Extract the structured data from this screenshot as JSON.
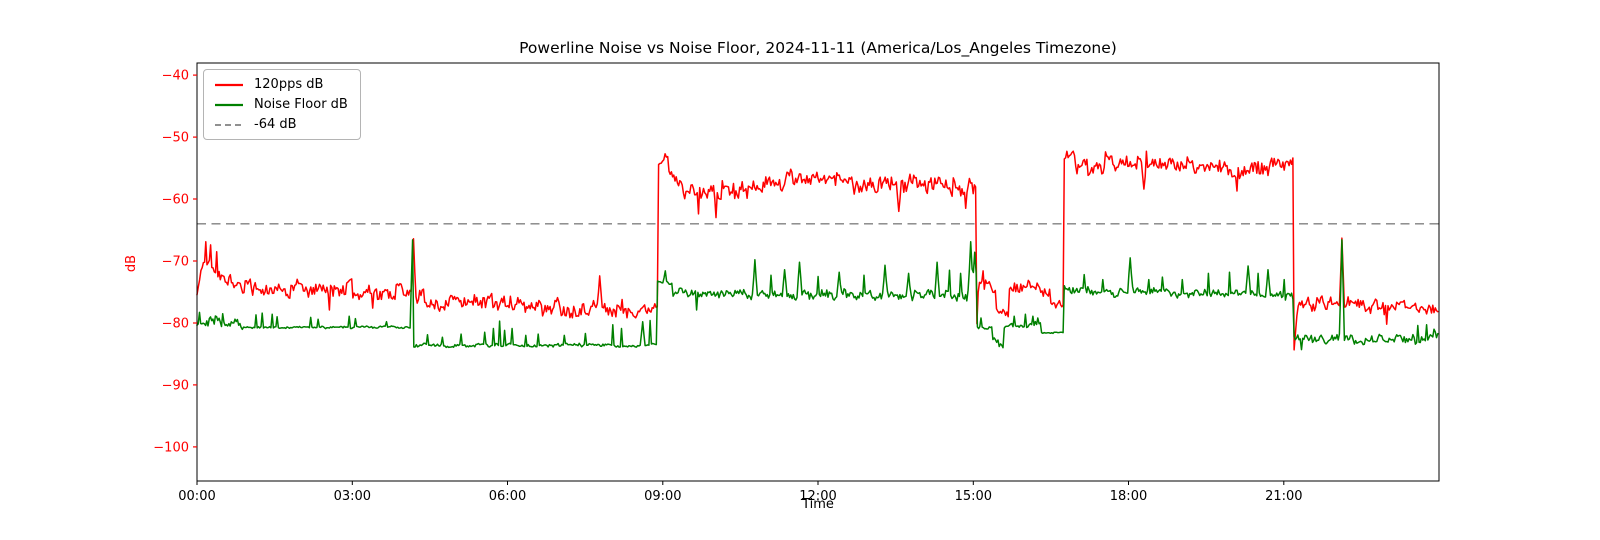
{
  "chart_data": {
    "type": "line",
    "title": "Powerline Noise vs Noise Floor, 2024-11-11 (America/Los_Angeles Timezone)",
    "xlabel": "Time",
    "ylabel": "dB",
    "xlim_hours": [
      0,
      24
    ],
    "ylim": [
      -105.5,
      -38.05
    ],
    "grid": false,
    "x_ticks": [
      {
        "hour": 0,
        "label": "00:00"
      },
      {
        "hour": 3,
        "label": "03:00"
      },
      {
        "hour": 6,
        "label": "06:00"
      },
      {
        "hour": 9,
        "label": "09:00"
      },
      {
        "hour": 12,
        "label": "12:00"
      },
      {
        "hour": 15,
        "label": "15:00"
      },
      {
        "hour": 18,
        "label": "18:00"
      },
      {
        "hour": 21,
        "label": "21:00"
      }
    ],
    "y_ticks": [
      {
        "value": -40,
        "label": "−40"
      },
      {
        "value": -50,
        "label": "−50"
      },
      {
        "value": -60,
        "label": "−60"
      },
      {
        "value": -70,
        "label": "−70"
      },
      {
        "value": -80,
        "label": "−80"
      },
      {
        "value": -90,
        "label": "−90"
      },
      {
        "value": -100,
        "label": "−100"
      }
    ],
    "axis_colors": {
      "y_tick": "#ff0000",
      "x_tick": "#000000",
      "ylabel": "#ff0000",
      "spine": "#000000"
    },
    "reference_line": {
      "value": -64,
      "label": "-64 dB",
      "color": "#808080",
      "dashed": true
    },
    "legend": {
      "position": "upper left",
      "entries": [
        {
          "label": "120pps dB",
          "color": "#ff0000",
          "dashed": false
        },
        {
          "label": "Noise Floor dB",
          "color": "#008000",
          "dashed": false
        },
        {
          "label": "-64 dB",
          "color": "#909090",
          "dashed": true
        }
      ]
    },
    "segment_format": [
      "t_start_h",
      "t_end_h",
      "dB_start",
      "dB_end",
      "noise_amp_dB",
      "spikes [t_h, dB]"
    ],
    "series": [
      {
        "name": "120pps dB",
        "color": "#ff0000",
        "segments": [
          [
            0.0,
            0.1,
            -75.5,
            -72.0,
            1.0,
            []
          ],
          [
            0.1,
            0.45,
            -70.3,
            -71.5,
            1.6,
            [
              [
                0.16,
                -66.9
              ],
              [
                0.27,
                -67.4
              ],
              [
                0.38,
                -68.5
              ]
            ]
          ],
          [
            0.45,
            1.1,
            -73.0,
            -74.0,
            1.5,
            []
          ],
          [
            1.1,
            4.16,
            -74.3,
            -74.8,
            1.5,
            [
              [
                2.55,
                -77.9
              ],
              [
                3.4,
                -77.6
              ]
            ]
          ],
          [
            4.16,
            8.55,
            -76.3,
            -77.9,
            1.6,
            [
              [
                4.18,
                -66.4
              ],
              [
                7.78,
                -72.4
              ]
            ]
          ],
          [
            8.55,
            8.92,
            -77.8,
            -77.2,
            1.1,
            []
          ],
          [
            8.92,
            9.12,
            -53.8,
            -53.2,
            0.7,
            [
              [
                9.04,
                -52.7
              ]
            ]
          ],
          [
            9.12,
            9.4,
            -55.5,
            -57.5,
            1.0,
            []
          ],
          [
            9.4,
            10.15,
            -58.5,
            -59.0,
            1.5,
            [
              [
                9.7,
                -62.4
              ],
              [
                10.02,
                -63.0
              ]
            ]
          ],
          [
            10.15,
            11.4,
            -58.5,
            -57.2,
            1.7,
            []
          ],
          [
            11.4,
            12.7,
            -56.3,
            -56.8,
            1.5,
            []
          ],
          [
            12.7,
            15.07,
            -57.5,
            -58.2,
            1.8,
            [
              [
                13.55,
                -62.0
              ],
              [
                14.85,
                -61.5
              ]
            ]
          ],
          [
            15.07,
            15.12,
            -80.2,
            -75.0,
            0.5,
            []
          ],
          [
            15.12,
            15.45,
            -73.2,
            -74.2,
            1.1,
            [
              [
                15.2,
                -71.6
              ]
            ]
          ],
          [
            15.45,
            15.7,
            -77.8,
            -78.6,
            0.9,
            []
          ],
          [
            15.7,
            16.5,
            -73.8,
            -74.6,
            1.2,
            []
          ],
          [
            16.5,
            16.76,
            -76.6,
            -77.4,
            0.7,
            []
          ],
          [
            16.76,
            16.98,
            -53.6,
            -53.0,
            0.7,
            [
              [
                16.8,
                -52.3
              ]
            ]
          ],
          [
            16.98,
            19.4,
            -54.6,
            -54.4,
            1.5,
            [
              [
                17.55,
                -52.4
              ],
              [
                18.3,
                -58.4
              ],
              [
                18.35,
                -52.3
              ]
            ]
          ],
          [
            19.4,
            21.2,
            -55.2,
            -55.0,
            1.6,
            [
              [
                20.1,
                -58.7
              ]
            ]
          ],
          [
            21.2,
            21.28,
            -84.2,
            -78.5,
            0.4,
            []
          ],
          [
            21.28,
            22.1,
            -76.8,
            -76.8,
            1.2,
            []
          ],
          [
            22.1,
            24.0,
            -77.0,
            -77.8,
            1.2,
            [
              [
                22.13,
                -66.3
              ],
              [
                23.0,
                -80.2
              ]
            ]
          ]
        ]
      },
      {
        "name": "Noise Floor dB",
        "color": "#008000",
        "segments": [
          [
            0.0,
            0.9,
            -79.6,
            -80.0,
            1.0,
            [
              [
                0.05,
                -78.3
              ],
              [
                0.5,
                -78.5
              ]
            ]
          ],
          [
            0.9,
            4.19,
            -80.7,
            -80.7,
            0.22,
            [
              [
                1.15,
                -78.7
              ],
              [
                1.25,
                -78.4
              ],
              [
                1.45,
                -78.6
              ],
              [
                1.55,
                -79.0
              ],
              [
                2.2,
                -79.1
              ],
              [
                2.35,
                -79.4
              ],
              [
                2.95,
                -78.9
              ],
              [
                3.05,
                -79.3
              ],
              [
                3.65,
                -79.8
              ],
              [
                4.17,
                -66.6
              ]
            ]
          ],
          [
            4.19,
            8.9,
            -83.6,
            -83.6,
            0.35,
            [
              [
                4.45,
                -81.9
              ],
              [
                4.75,
                -82.3
              ],
              [
                5.1,
                -81.8
              ],
              [
                5.55,
                -81.5
              ],
              [
                5.72,
                -80.9
              ],
              [
                5.85,
                -79.7
              ],
              [
                5.95,
                -81.2
              ],
              [
                6.1,
                -80.9
              ],
              [
                6.35,
                -82.0
              ],
              [
                6.6,
                -81.8
              ],
              [
                7.1,
                -82.0
              ],
              [
                7.5,
                -81.7
              ],
              [
                8.04,
                -80.3
              ],
              [
                8.2,
                -80.9
              ],
              [
                8.62,
                -79.8
              ],
              [
                8.75,
                -79.6
              ]
            ]
          ],
          [
            8.9,
            9.2,
            -73.3,
            -73.8,
            0.7,
            [
              [
                9.06,
                -71.6
              ]
            ]
          ],
          [
            9.2,
            14.9,
            -75.2,
            -75.6,
            0.9,
            [
              [
                9.65,
                -77.9
              ],
              [
                10.78,
                -69.8
              ],
              [
                11.1,
                -72.3
              ],
              [
                11.35,
                -71.4
              ],
              [
                11.65,
                -70.2
              ],
              [
                12.0,
                -72.5
              ],
              [
                12.4,
                -71.8
              ],
              [
                12.9,
                -72.3
              ],
              [
                13.3,
                -70.7
              ],
              [
                13.75,
                -72.0
              ],
              [
                14.3,
                -70.2
              ],
              [
                14.55,
                -71.5
              ],
              [
                14.75,
                -72.0
              ]
            ]
          ],
          [
            14.9,
            15.08,
            -74.5,
            -76.0,
            0.8,
            [
              [
                14.95,
                -66.9
              ],
              [
                15.04,
                -68.6
              ]
            ]
          ],
          [
            15.08,
            15.38,
            -80.8,
            -80.8,
            0.3,
            [
              [
                15.15,
                -79.2
              ]
            ]
          ],
          [
            15.38,
            15.6,
            -82.8,
            -83.6,
            0.5,
            []
          ],
          [
            15.6,
            16.32,
            -80.6,
            -80.2,
            0.6,
            [
              [
                15.8,
                -78.9
              ],
              [
                16.0,
                -78.6
              ],
              [
                16.15,
                -78.9
              ],
              [
                16.25,
                -79.2
              ]
            ]
          ],
          [
            16.32,
            16.76,
            -81.6,
            -81.6,
            0.12,
            []
          ],
          [
            16.76,
            21.2,
            -74.8,
            -75.6,
            0.8,
            [
              [
                17.15,
                -72.2
              ],
              [
                17.5,
                -73.0
              ],
              [
                18.03,
                -69.5
              ],
              [
                18.4,
                -73.0
              ],
              [
                18.65,
                -72.6
              ],
              [
                19.05,
                -73.0
              ],
              [
                19.55,
                -72.0
              ],
              [
                19.95,
                -71.8
              ],
              [
                20.3,
                -70.8
              ],
              [
                20.5,
                -72.0
              ],
              [
                20.7,
                -71.4
              ],
              [
                21.0,
                -73.0
              ]
            ]
          ],
          [
            21.2,
            22.1,
            -82.6,
            -82.6,
            0.9,
            [
              [
                21.35,
                -84.3
              ]
            ]
          ],
          [
            22.1,
            24.0,
            -82.8,
            -82.4,
            0.9,
            [
              [
                22.13,
                -66.6
              ],
              [
                23.6,
                -80.4
              ],
              [
                23.75,
                -80.3
              ],
              [
                23.9,
                -81.0
              ]
            ]
          ]
        ]
      }
    ]
  }
}
